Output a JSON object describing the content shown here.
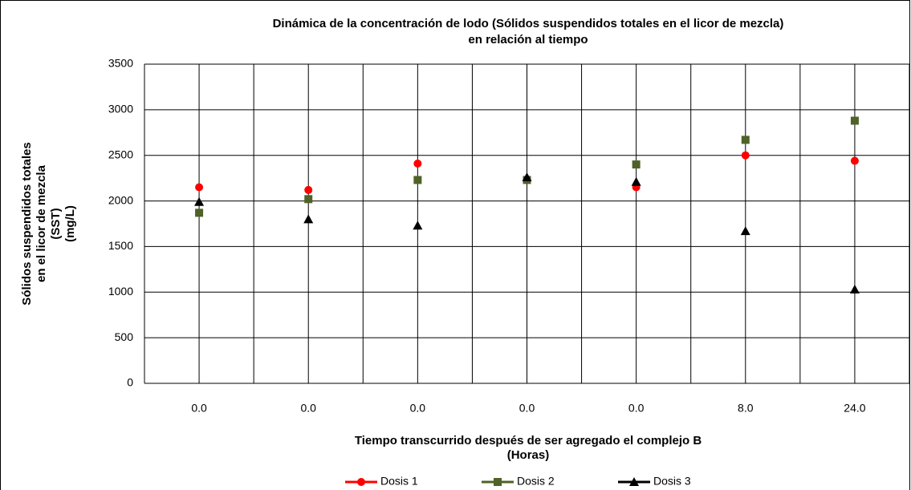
{
  "chart_data": {
    "type": "line",
    "title": [
      "Dinámica de la concentración de lodo (Sólidos suspendidos totales en el licor de mezcla)",
      "en relación al tiempo"
    ],
    "y_label": [
      "Sólidos suspendidos totales",
      "en el licor de mezcla",
      "(SST)",
      "(mg/L)"
    ],
    "x_label": [
      "Tiempo transcurrido  después de ser agregado el complejo B",
      "(Horas)"
    ],
    "categories": [
      "0.0",
      "0.0",
      "0.0",
      "0.0",
      "0.0",
      "8.0",
      "24.0"
    ],
    "series": [
      {
        "name": "Dosis 1",
        "color": "#ff0000",
        "marker": "circle",
        "values": [
          2150,
          2120,
          2410,
          2230,
          2150,
          2500,
          2440
        ]
      },
      {
        "name": "Dosis 2",
        "color": "#4f6228",
        "marker": "square",
        "values": [
          1870,
          2020,
          2230,
          2230,
          2400,
          2670,
          2880
        ]
      },
      {
        "name": "Dosis 3",
        "color": "#000000",
        "marker": "triangle",
        "values": [
          1990,
          1800,
          1730,
          2260,
          2210,
          1670,
          1030
        ]
      }
    ],
    "ylim": [
      0,
      3500
    ],
    "yticks": [
      0,
      500,
      1000,
      1500,
      2000,
      2500,
      3000,
      3500
    ],
    "grid": true,
    "legend": "bottom"
  }
}
